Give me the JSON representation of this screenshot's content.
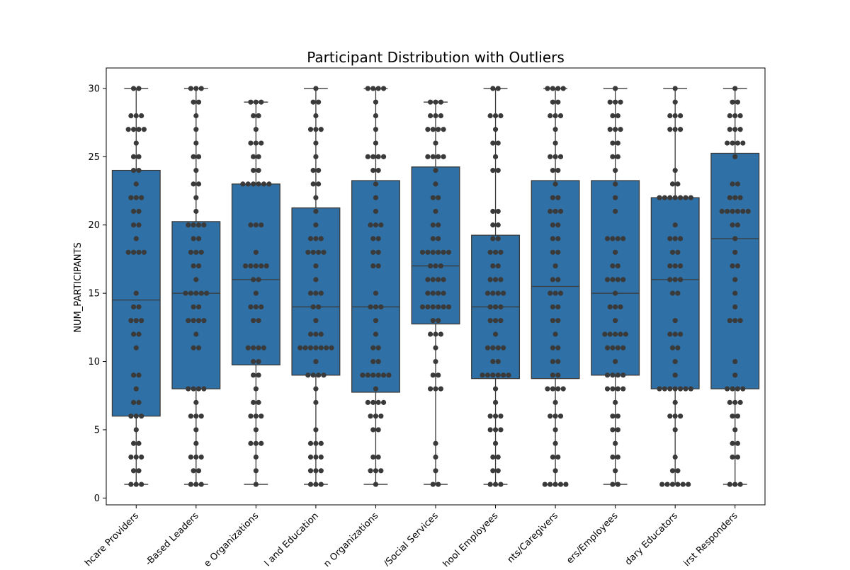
{
  "chart_data": {
    "type": "boxplot",
    "title": "Participant Distribution with Outliers",
    "xlabel": "",
    "ylabel": "NUM_PARTICIPANTS",
    "ylim": [
      -0.5,
      31.5
    ],
    "yticks": [
      0,
      5,
      10,
      15,
      20,
      25,
      30
    ],
    "grid": false,
    "legend": "none",
    "colors": {
      "box_fill": "#2f71a6",
      "lines": "#3a3a3a",
      "points": "#3a3a3a"
    },
    "categories": [
      "hcare Providers",
      "-Based Leaders",
      "e Organizations",
      "l and Education",
      "n Organizations",
      "/Social Services",
      "hool Employees",
      "nts/Caregivers",
      "ers/Employees",
      "dary Educators",
      "irst Responders"
    ],
    "boxes": [
      {
        "min": 1,
        "q1": 6,
        "median": 14.5,
        "q3": 24,
        "max": 30
      },
      {
        "min": 1,
        "q1": 8,
        "median": 15,
        "q3": 20.25,
        "max": 30
      },
      {
        "min": 1,
        "q1": 9.75,
        "median": 16,
        "q3": 23,
        "max": 29
      },
      {
        "min": 1,
        "q1": 9,
        "median": 14,
        "q3": 21.25,
        "max": 30
      },
      {
        "min": 1,
        "q1": 7.75,
        "median": 14,
        "q3": 23.25,
        "max": 30
      },
      {
        "min": 1,
        "q1": 12.75,
        "median": 17,
        "q3": 24.25,
        "max": 29
      },
      {
        "min": 1,
        "q1": 8.75,
        "median": 14,
        "q3": 19.25,
        "max": 30
      },
      {
        "min": 1,
        "q1": 8.75,
        "median": 15.5,
        "q3": 23.25,
        "max": 30
      },
      {
        "min": 1,
        "q1": 9,
        "median": 15,
        "q3": 23.25,
        "max": 30
      },
      {
        "min": 1,
        "q1": 8,
        "median": 16,
        "q3": 22,
        "max": 30
      },
      {
        "min": 1,
        "q1": 8,
        "median": 19,
        "q3": 25.25,
        "max": 30
      }
    ],
    "points": [
      [
        1,
        1,
        1,
        2,
        2,
        3,
        3,
        3,
        4,
        4,
        5,
        6,
        6,
        6,
        7,
        7,
        8,
        9,
        9,
        11,
        12,
        12,
        13,
        13,
        13,
        14,
        14,
        15,
        18,
        18,
        18,
        18,
        19,
        20,
        20,
        21,
        21,
        22,
        22,
        22,
        23,
        24,
        24,
        25,
        25,
        26,
        27,
        27,
        27,
        27,
        28,
        28,
        28,
        30,
        30
      ],
      [
        1,
        1,
        1,
        2,
        2,
        3,
        3,
        3,
        4,
        5,
        6,
        6,
        6,
        7,
        8,
        8,
        8,
        8,
        11,
        11,
        12,
        13,
        13,
        13,
        13,
        14,
        14,
        15,
        15,
        15,
        15,
        15,
        16,
        17,
        17,
        18,
        18,
        18,
        19,
        19,
        20,
        20,
        20,
        20,
        21,
        22,
        23,
        23,
        24,
        25,
        25,
        26,
        27,
        28,
        29,
        29,
        30,
        30,
        30
      ],
      [
        1,
        2,
        3,
        4,
        4,
        4,
        5,
        6,
        6,
        6,
        7,
        7,
        8,
        9,
        9,
        10,
        10,
        11,
        11,
        11,
        11,
        13,
        13,
        14,
        14,
        14,
        15,
        16,
        16,
        17,
        17,
        17,
        17,
        17,
        18,
        20,
        20,
        20,
        23,
        23,
        23,
        23,
        23,
        23,
        24,
        24,
        25,
        25,
        26,
        26,
        26,
        27,
        28,
        28,
        29,
        29,
        29
      ],
      [
        1,
        1,
        1,
        2,
        2,
        2,
        3,
        3,
        3,
        4,
        4,
        4,
        5,
        7,
        8,
        9,
        9,
        9,
        9,
        10,
        11,
        11,
        11,
        11,
        11,
        11,
        11,
        12,
        12,
        12,
        13,
        14,
        14,
        15,
        15,
        15,
        16,
        17,
        18,
        18,
        18,
        18,
        19,
        19,
        19,
        20,
        21,
        22,
        23,
        23,
        24,
        24,
        25,
        26,
        27,
        27,
        27,
        28,
        29,
        29,
        30
      ],
      [
        1,
        2,
        2,
        2,
        3,
        3,
        5,
        5,
        6,
        6,
        6,
        7,
        7,
        7,
        7,
        8,
        9,
        9,
        9,
        9,
        9,
        9,
        10,
        10,
        11,
        11,
        12,
        13,
        14,
        14,
        14,
        15,
        17,
        17,
        18,
        18,
        19,
        19,
        20,
        20,
        20,
        21,
        22,
        23,
        24,
        24,
        25,
        25,
        25,
        25,
        26,
        27,
        28,
        29,
        30,
        30,
        30,
        30
      ],
      [
        1,
        1,
        2,
        3,
        4,
        8,
        8,
        8,
        9,
        9,
        10,
        11,
        12,
        12,
        12,
        13,
        13,
        14,
        14,
        14,
        14,
        14,
        14,
        15,
        15,
        15,
        15,
        16,
        16,
        16,
        16,
        17,
        17,
        17,
        18,
        18,
        18,
        18,
        18,
        18,
        19,
        19,
        20,
        20,
        21,
        22,
        22,
        23,
        24,
        25,
        25,
        25,
        25,
        26,
        27,
        27,
        27,
        27,
        28,
        28,
        28,
        29,
        29,
        29
      ],
      [
        1,
        1,
        1,
        2,
        2,
        3,
        3,
        4,
        5,
        5,
        5,
        6,
        6,
        6,
        7,
        8,
        9,
        9,
        9,
        9,
        9,
        9,
        10,
        10,
        11,
        11,
        11,
        11,
        12,
        13,
        13,
        13,
        14,
        14,
        14,
        15,
        15,
        15,
        15,
        16,
        16,
        16,
        17,
        17,
        18,
        18,
        18,
        19,
        19,
        20,
        20,
        21,
        21,
        24,
        24,
        25,
        26,
        26,
        27,
        28,
        28,
        28,
        30,
        30
      ],
      [
        1,
        1,
        1,
        1,
        1,
        2,
        3,
        3,
        4,
        5,
        6,
        6,
        6,
        7,
        8,
        8,
        8,
        8,
        9,
        9,
        10,
        10,
        11,
        11,
        12,
        13,
        13,
        14,
        14,
        15,
        15,
        15,
        16,
        16,
        17,
        18,
        18,
        19,
        19,
        20,
        20,
        21,
        21,
        21,
        22,
        22,
        23,
        24,
        24,
        25,
        25,
        25,
        26,
        27,
        28,
        28,
        28,
        29,
        29,
        30,
        30,
        30,
        30
      ],
      [
        1,
        1,
        2,
        3,
        3,
        4,
        5,
        5,
        6,
        6,
        7,
        8,
        8,
        8,
        8,
        9,
        9,
        9,
        9,
        10,
        11,
        11,
        11,
        11,
        12,
        12,
        12,
        12,
        12,
        13,
        14,
        14,
        14,
        15,
        16,
        16,
        16,
        16,
        17,
        17,
        18,
        19,
        19,
        19,
        19,
        21,
        22,
        23,
        24,
        25,
        25,
        26,
        26,
        27,
        27,
        27,
        28,
        28,
        29,
        29,
        29,
        30
      ],
      [
        1,
        1,
        1,
        1,
        1,
        1,
        2,
        2,
        3,
        5,
        6,
        6,
        6,
        7,
        8,
        8,
        8,
        8,
        8,
        8,
        8,
        9,
        10,
        11,
        11,
        12,
        12,
        12,
        13,
        15,
        15,
        16,
        16,
        16,
        17,
        17,
        17,
        18,
        18,
        19,
        19,
        19,
        20,
        22,
        22,
        22,
        22,
        22,
        22,
        22,
        23,
        23,
        24,
        27,
        27,
        27,
        28,
        28,
        28,
        29,
        30
      ],
      [
        1,
        1,
        1,
        3,
        3,
        4,
        4,
        5,
        6,
        6,
        7,
        7,
        7,
        8,
        8,
        8,
        8,
        9,
        10,
        13,
        13,
        13,
        14,
        15,
        16,
        17,
        17,
        18,
        19,
        20,
        20,
        21,
        21,
        21,
        21,
        21,
        21,
        22,
        22,
        22,
        23,
        23,
        25,
        26,
        26,
        26,
        26,
        27,
        27,
        27,
        28,
        28,
        28,
        29,
        29,
        30
      ]
    ]
  }
}
